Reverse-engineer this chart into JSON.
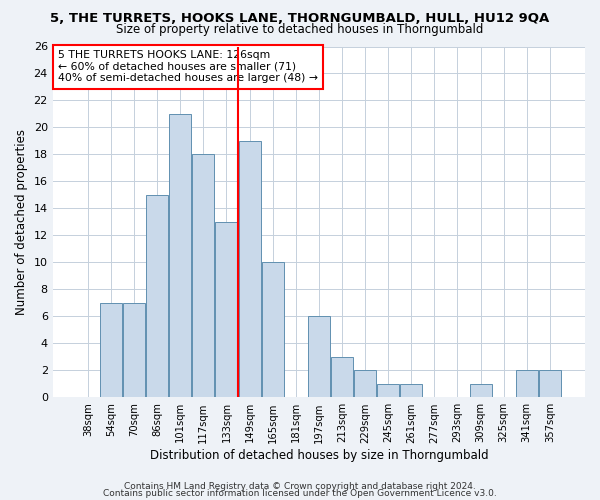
{
  "title": "5, THE TURRETS, HOOKS LANE, THORNGUMBALD, HULL, HU12 9QA",
  "subtitle": "Size of property relative to detached houses in Thorngumbald",
  "xlabel": "Distribution of detached houses by size in Thorngumbald",
  "ylabel": "Number of detached properties",
  "categories": [
    "38sqm",
    "54sqm",
    "70sqm",
    "86sqm",
    "101sqm",
    "117sqm",
    "133sqm",
    "149sqm",
    "165sqm",
    "181sqm",
    "197sqm",
    "213sqm",
    "229sqm",
    "245sqm",
    "261sqm",
    "277sqm",
    "293sqm",
    "309sqm",
    "325sqm",
    "341sqm",
    "357sqm"
  ],
  "values": [
    0,
    7,
    7,
    15,
    21,
    18,
    13,
    19,
    10,
    0,
    6,
    3,
    2,
    1,
    1,
    0,
    0,
    1,
    0,
    2,
    2
  ],
  "bar_color": "#c9d9ea",
  "bar_edge_color": "#6090b0",
  "vline_x": 6.5,
  "vline_color": "red",
  "ylim": [
    0,
    26
  ],
  "yticks": [
    0,
    2,
    4,
    6,
    8,
    10,
    12,
    14,
    16,
    18,
    20,
    22,
    24,
    26
  ],
  "annotation_text": "5 THE TURRETS HOOKS LANE: 126sqm\n← 60% of detached houses are smaller (71)\n40% of semi-detached houses are larger (48) →",
  "footer1": "Contains HM Land Registry data © Crown copyright and database right 2024.",
  "footer2": "Contains public sector information licensed under the Open Government Licence v3.0.",
  "bg_color": "#eef2f7",
  "plot_bg_color": "#ffffff",
  "grid_color": "#c5d0dc"
}
